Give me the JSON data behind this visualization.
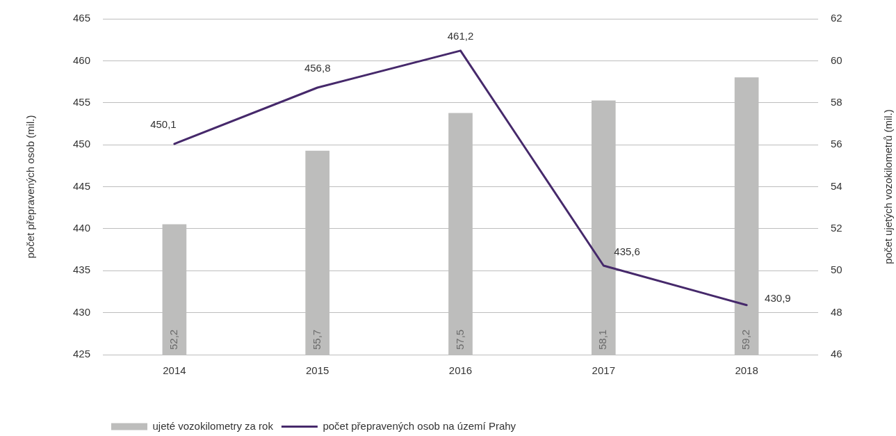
{
  "chart_data": {
    "type": "bar",
    "categories": [
      "2014",
      "2015",
      "2016",
      "2017",
      "2018"
    ],
    "ylabel": "počet přepravených osob (mil.)",
    "y2label": "počet ujetých vozokilometrů (mil.)",
    "series": [
      {
        "name": "ujeté vozokilometry za rok",
        "axis": "y2",
        "color": "#bdbdbc",
        "values": [
          52.2,
          55.7,
          57.5,
          58.1,
          59.2
        ],
        "value_labels": [
          "52,2",
          "55,7",
          "57,5",
          "58,1",
          "59,2"
        ]
      },
      {
        "name": "počet přepravených osob na území Prahy",
        "type": "line",
        "axis": "y",
        "color": "#46296b",
        "values": [
          450.1,
          456.8,
          461.2,
          435.6,
          430.9
        ],
        "value_labels": [
          "450,1",
          "456,8",
          "461,2",
          "435,6",
          "430,9"
        ]
      }
    ],
    "ylim": [
      425,
      465
    ],
    "yticks": [
      425,
      430,
      435,
      440,
      445,
      450,
      455,
      460,
      465
    ],
    "y2lim": [
      46,
      62
    ],
    "y2ticks": [
      46,
      48,
      50,
      52,
      54,
      56,
      58,
      60,
      62
    ],
    "grid": "y",
    "legend": "bottom",
    "marker": "none",
    "line_style": "solid"
  }
}
